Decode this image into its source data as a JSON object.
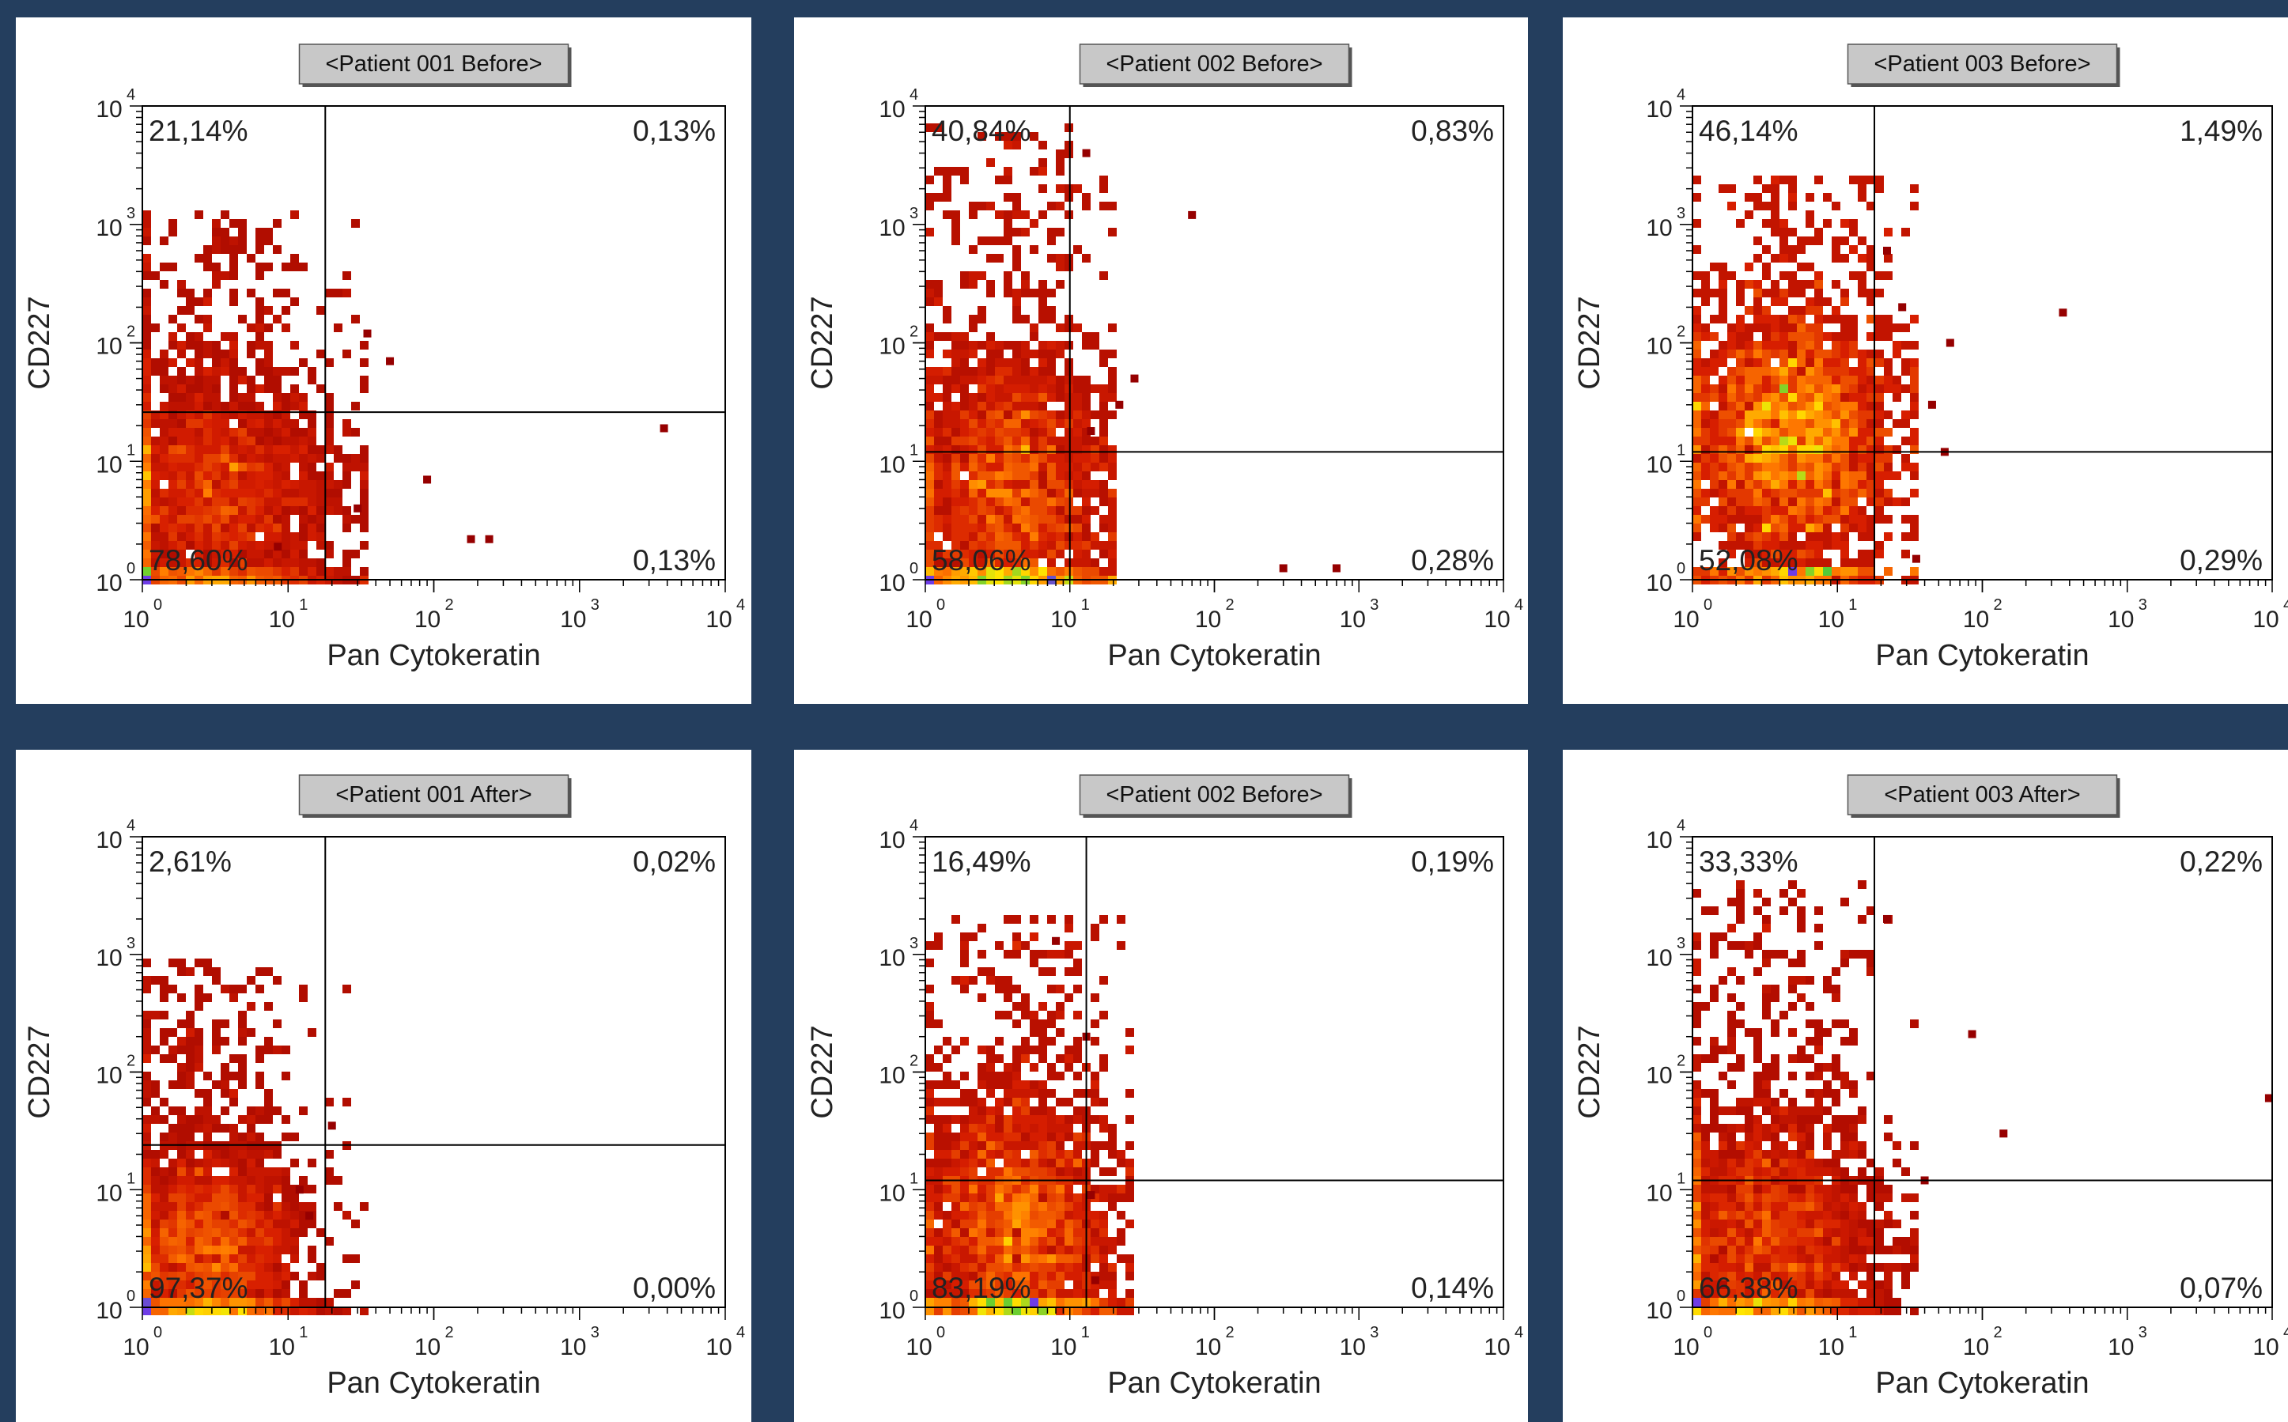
{
  "axis_labels": {
    "x": "Pan Cytokeratin",
    "y": "CD227"
  },
  "ticks": {
    "bases": [
      "10",
      "10",
      "10",
      "10",
      "10"
    ],
    "exponents": [
      "0",
      "1",
      "2",
      "3",
      "4"
    ]
  },
  "colors": {
    "page_background": "#243e5e",
    "panel_background": "#ffffff",
    "title_box": "#c8c8c8",
    "quadrant_lines": "#000000"
  },
  "chart_data": [
    {
      "type": "scatter",
      "style": "density-dot-plot",
      "title": "<Patient 001 Before>",
      "xlabel": "Pan Cytokeratin",
      "ylabel": "CD227",
      "xscale": "log",
      "yscale": "log",
      "xlim": [
        1,
        10000
      ],
      "ylim": [
        1,
        10000
      ],
      "gate": {
        "x": 18,
        "y": 26
      },
      "quadrants": {
        "upper_left": "21,14%",
        "upper_right": "0,13%",
        "lower_left": "78,60%",
        "lower_right": "0,13%"
      },
      "main_cluster": {
        "x": 3.2,
        "y": 5,
        "spread": [
          0.42,
          0.55
        ],
        "tail_y": 1000
      },
      "outliers": [
        [
          35,
          120
        ],
        [
          50,
          70
        ],
        [
          90,
          7
        ],
        [
          180,
          2.2
        ],
        [
          240,
          2.2
        ],
        [
          3800,
          19
        ],
        [
          8.5,
          1.9
        ],
        [
          30,
          4
        ]
      ]
    },
    {
      "type": "scatter",
      "style": "density-dot-plot",
      "title": "<Patient 002 Before>",
      "xlabel": "Pan Cytokeratin",
      "ylabel": "CD227",
      "xscale": "log",
      "yscale": "log",
      "xlim": [
        1,
        10000
      ],
      "ylim": [
        1,
        10000
      ],
      "gate": {
        "x": 10,
        "y": 12
      },
      "quadrants": {
        "upper_left": "40,84%",
        "upper_right": "0,83%",
        "lower_left": "58,06%",
        "lower_right": "0,28%"
      },
      "main_cluster": {
        "x": 4,
        "y": 5,
        "spread": [
          0.35,
          0.6
        ],
        "tail_y": 5000
      },
      "outliers": [
        [
          70,
          1200
        ],
        [
          28,
          50
        ],
        [
          14,
          18
        ],
        [
          300,
          1.25
        ],
        [
          700,
          1.25
        ],
        [
          22,
          30
        ],
        [
          13,
          4000
        ]
      ]
    },
    {
      "type": "scatter",
      "style": "density-dot-plot",
      "title": "<Patient 003 Before>",
      "xlabel": "Pan Cytokeratin",
      "ylabel": "CD227",
      "xscale": "log",
      "yscale": "log",
      "xlim": [
        1,
        10000
      ],
      "ylim": [
        1,
        10000
      ],
      "gate": {
        "x": 18,
        "y": 12
      },
      "quadrants": {
        "upper_left": "46,14%",
        "upper_right": "1,49%",
        "lower_left": "52,08%",
        "lower_right": "0,29%"
      },
      "main_cluster": {
        "x": 5,
        "y": 15,
        "spread": [
          0.38,
          0.55
        ],
        "tail_y": 2000
      },
      "outliers": [
        [
          360,
          180
        ],
        [
          60,
          100
        ],
        [
          45,
          30
        ],
        [
          22,
          600
        ],
        [
          28,
          200
        ],
        [
          55,
          12
        ],
        [
          35,
          1.5
        ]
      ]
    },
    {
      "type": "scatter",
      "style": "density-dot-plot",
      "title": "<Patient 001 After>",
      "xlabel": "Pan Cytokeratin",
      "ylabel": "CD227",
      "xscale": "log",
      "yscale": "log",
      "xlim": [
        1,
        10000
      ],
      "ylim": [
        1,
        10000
      ],
      "gate": {
        "x": 18,
        "y": 24
      },
      "quadrants": {
        "upper_left": "2,61%",
        "upper_right": "0,02%",
        "lower_left": "97,37%",
        "lower_right": "0,00%"
      },
      "main_cluster": {
        "x": 2.8,
        "y": 2.8,
        "spread": [
          0.33,
          0.45
        ],
        "tail_y": 700
      },
      "outliers": [
        [
          20,
          35
        ],
        [
          14,
          6
        ],
        [
          12,
          10
        ]
      ]
    },
    {
      "type": "scatter",
      "style": "density-dot-plot",
      "title": "<Patient 002 Before>",
      "xlabel": "Pan Cytokeratin",
      "ylabel": "CD227",
      "xscale": "log",
      "yscale": "log",
      "xlim": [
        1,
        10000
      ],
      "ylim": [
        1,
        10000
      ],
      "gate": {
        "x": 13,
        "y": 12
      },
      "quadrants": {
        "upper_left": "16,49%",
        "upper_right": "0,19%",
        "lower_left": "83,19%",
        "lower_right": "0,14%"
      },
      "main_cluster": {
        "x": 4.5,
        "y": 4.5,
        "spread": [
          0.34,
          0.55
        ],
        "tail_y": 1600
      },
      "outliers": [
        [
          15,
          1.7
        ],
        [
          14,
          9
        ],
        [
          13,
          200
        ],
        [
          8,
          1300
        ]
      ]
    },
    {
      "type": "scatter",
      "style": "density-dot-plot",
      "title": "<Patient 003 After>",
      "xlabel": "Pan Cytokeratin",
      "ylabel": "CD227",
      "xscale": "log",
      "yscale": "log",
      "xlim": [
        1,
        10000
      ],
      "ylim": [
        1,
        10000
      ],
      "gate": {
        "x": 18,
        "y": 12
      },
      "quadrants": {
        "upper_left": "33,33%",
        "upper_right": "0,22%",
        "lower_left": "66,38%",
        "lower_right": "0,07%"
      },
      "main_cluster": {
        "x": 3.2,
        "y": 4,
        "spread": [
          0.4,
          0.55
        ],
        "tail_y": 3000
      },
      "outliers": [
        [
          85,
          210
        ],
        [
          140,
          30
        ],
        [
          9500,
          60
        ],
        [
          40,
          12
        ],
        [
          22,
          2000
        ]
      ]
    }
  ]
}
